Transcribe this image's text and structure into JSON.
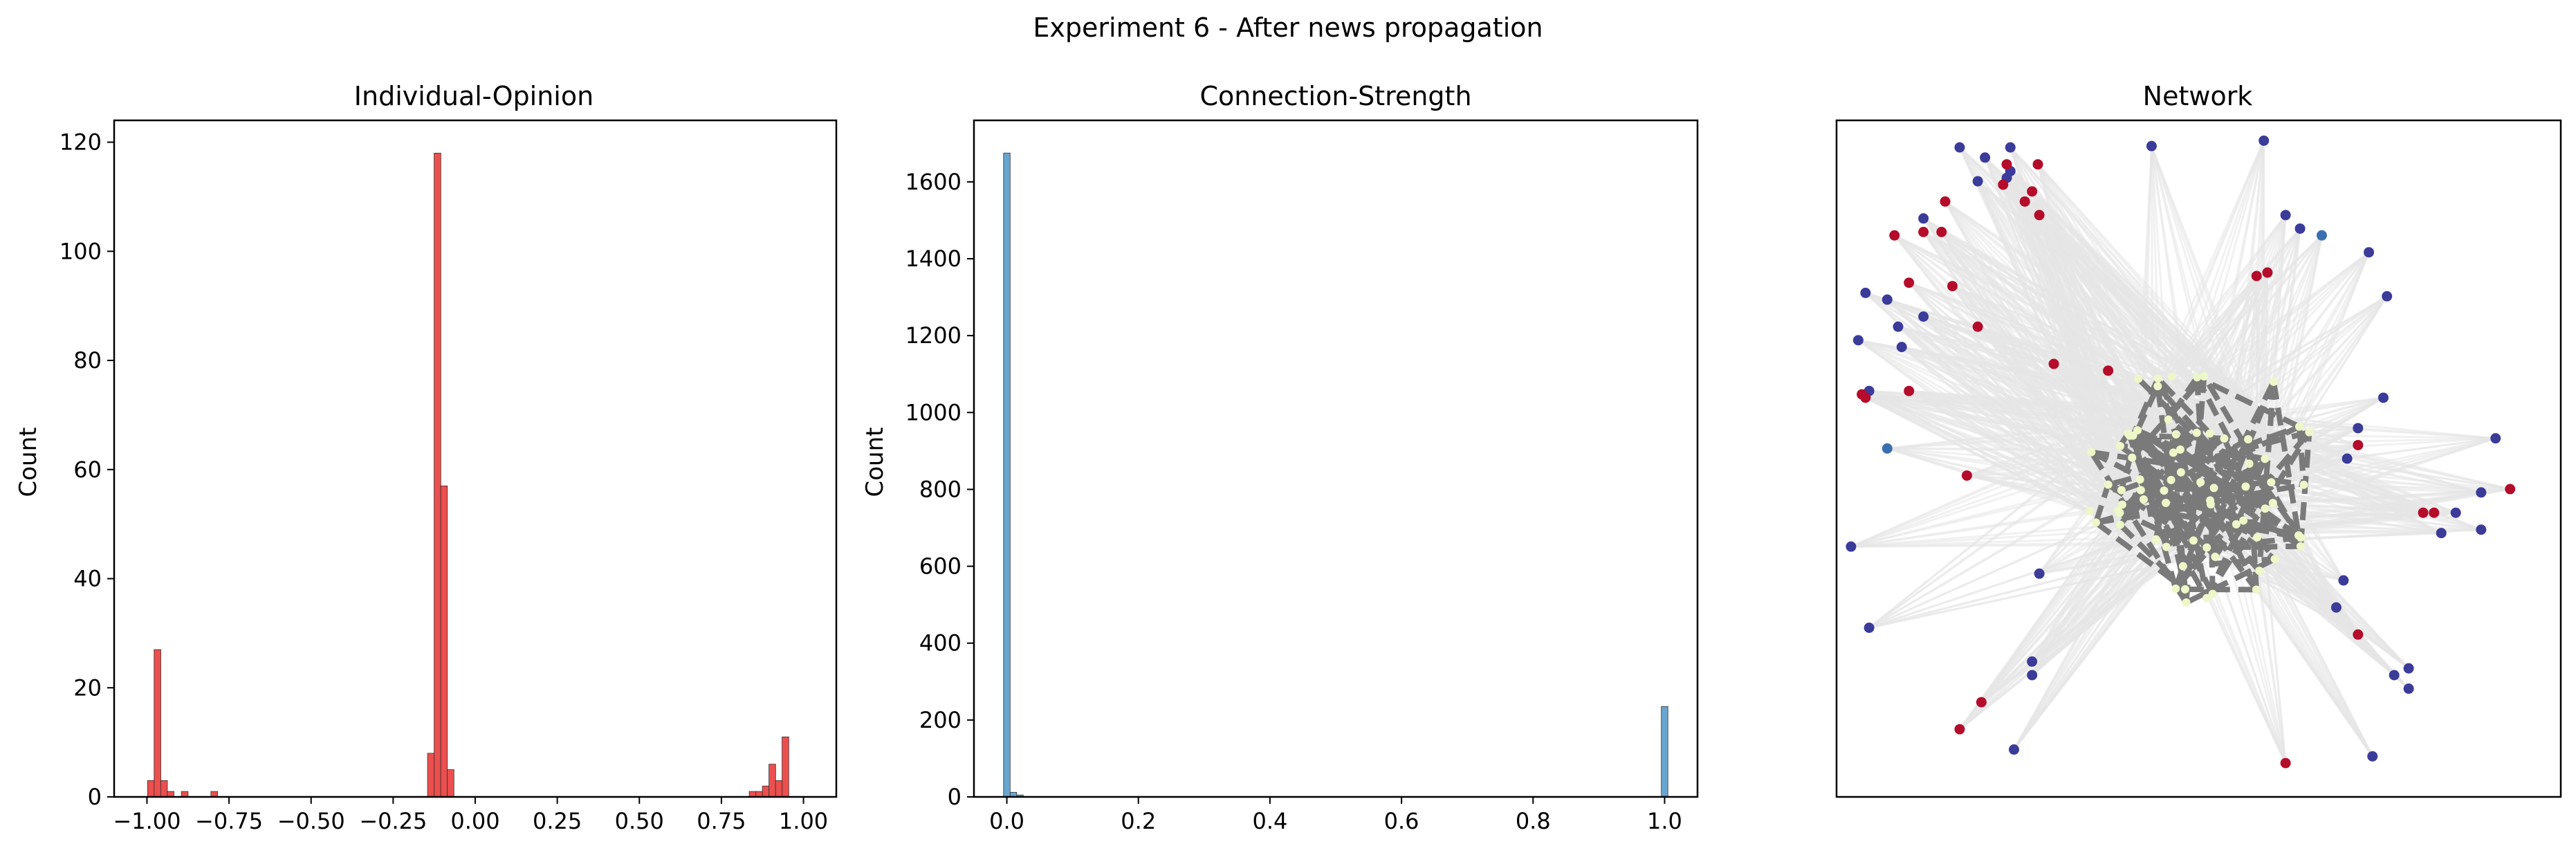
{
  "figure": {
    "suptitle": "Experiment 6 - After news propagation"
  },
  "chart_data": [
    {
      "type": "bar",
      "title": "Individual-Opinion",
      "xlabel": "",
      "ylabel": "Count",
      "xlim": [
        -1.1,
        1.1
      ],
      "ylim": [
        0,
        124
      ],
      "xticks": [
        "−1.00",
        "−0.75",
        "−0.50",
        "−0.25",
        "0.00",
        "0.25",
        "0.50",
        "0.75",
        "1.00"
      ],
      "xtick_values": [
        -1.0,
        -0.75,
        -0.5,
        -0.25,
        0.0,
        0.25,
        0.5,
        0.75,
        1.0
      ],
      "yticks": [
        "0",
        "20",
        "40",
        "60",
        "80",
        "100",
        "120"
      ],
      "ytick_values": [
        0,
        20,
        40,
        60,
        80,
        100,
        120
      ],
      "bar_color": "#e8302f",
      "bin_width": 0.0205,
      "bins": [
        {
          "x": -0.988,
          "count": 3
        },
        {
          "x": -0.968,
          "count": 27
        },
        {
          "x": -0.948,
          "count": 3
        },
        {
          "x": -0.928,
          "count": 1
        },
        {
          "x": -0.885,
          "count": 1
        },
        {
          "x": -0.795,
          "count": 1
        },
        {
          "x": -0.135,
          "count": 8
        },
        {
          "x": -0.115,
          "count": 118
        },
        {
          "x": -0.095,
          "count": 57
        },
        {
          "x": -0.075,
          "count": 5
        },
        {
          "x": 0.845,
          "count": 1
        },
        {
          "x": 0.865,
          "count": 1
        },
        {
          "x": 0.885,
          "count": 2
        },
        {
          "x": 0.905,
          "count": 6
        },
        {
          "x": 0.925,
          "count": 3
        },
        {
          "x": 0.945,
          "count": 11
        }
      ]
    },
    {
      "type": "bar",
      "title": "Connection-Strength",
      "xlabel": "",
      "ylabel": "Count",
      "xlim": [
        -0.05,
        1.05
      ],
      "ylim": [
        0,
        1760
      ],
      "xticks": [
        "0.0",
        "0.2",
        "0.4",
        "0.6",
        "0.8",
        "1.0"
      ],
      "xtick_values": [
        0.0,
        0.2,
        0.4,
        0.6,
        0.8,
        1.0
      ],
      "yticks": [
        "0",
        "200",
        "400",
        "600",
        "800",
        "1000",
        "1200",
        "1400",
        "1600"
      ],
      "ytick_values": [
        0,
        200,
        400,
        600,
        800,
        1000,
        1200,
        1400,
        1600
      ],
      "bar_color": "#4d96c8",
      "bin_width": 0.01,
      "bins": [
        {
          "x": 0.0,
          "count": 1675
        },
        {
          "x": 0.01,
          "count": 12
        },
        {
          "x": 0.02,
          "count": 5
        },
        {
          "x": 1.0,
          "count": 235
        }
      ]
    },
    {
      "type": "network",
      "title": "Network",
      "colors": {
        "negative_node": "#b40c2a",
        "neutral_positive_node": "#3b3b9a",
        "mid_blue_node": "#3a6fb0",
        "core_node": "#eef7c8",
        "strong_edge": "#7a7a7a",
        "weak_edge": "#e6e6e6"
      },
      "nodes": [
        {
          "x": 0.17,
          "y": 0.96,
          "g": "b"
        },
        {
          "x": 0.205,
          "y": 0.945,
          "g": "b"
        },
        {
          "x": 0.24,
          "y": 0.925,
          "g": "b"
        },
        {
          "x": 0.235,
          "y": 0.915,
          "g": "b"
        },
        {
          "x": 0.278,
          "y": 0.935,
          "g": "r"
        },
        {
          "x": 0.23,
          "y": 0.905,
          "g": "r"
        },
        {
          "x": 0.235,
          "y": 0.935,
          "g": "r"
        },
        {
          "x": 0.435,
          "y": 0.962,
          "g": "b"
        },
        {
          "x": 0.195,
          "y": 0.91,
          "g": "b"
        },
        {
          "x": 0.15,
          "y": 0.88,
          "g": "r"
        },
        {
          "x": 0.12,
          "y": 0.855,
          "g": "b"
        },
        {
          "x": 0.145,
          "y": 0.835,
          "g": "r"
        },
        {
          "x": 0.12,
          "y": 0.835,
          "g": "r"
        },
        {
          "x": 0.08,
          "y": 0.83,
          "g": "r"
        },
        {
          "x": 0.04,
          "y": 0.745,
          "g": "b"
        },
        {
          "x": 0.16,
          "y": 0.755,
          "g": "r"
        },
        {
          "x": 0.1,
          "y": 0.76,
          "g": "r"
        },
        {
          "x": 0.07,
          "y": 0.735,
          "g": "b"
        },
        {
          "x": 0.03,
          "y": 0.675,
          "g": "b"
        },
        {
          "x": 0.085,
          "y": 0.695,
          "g": "b"
        },
        {
          "x": 0.12,
          "y": 0.71,
          "g": "b"
        },
        {
          "x": 0.195,
          "y": 0.695,
          "g": "r"
        },
        {
          "x": 0.09,
          "y": 0.665,
          "g": "b"
        },
        {
          "x": 0.1,
          "y": 0.6,
          "g": "r"
        },
        {
          "x": 0.045,
          "y": 0.6,
          "g": "b"
        },
        {
          "x": 0.04,
          "y": 0.59,
          "g": "r"
        },
        {
          "x": 0.035,
          "y": 0.595,
          "g": "r"
        },
        {
          "x": 0.18,
          "y": 0.475,
          "g": "r"
        },
        {
          "x": 0.07,
          "y": 0.515,
          "g": "m"
        },
        {
          "x": 0.02,
          "y": 0.37,
          "g": "b"
        },
        {
          "x": 0.045,
          "y": 0.25,
          "g": "b"
        },
        {
          "x": 0.27,
          "y": 0.895,
          "g": "r"
        },
        {
          "x": 0.26,
          "y": 0.88,
          "g": "r"
        },
        {
          "x": 0.28,
          "y": 0.86,
          "g": "r"
        },
        {
          "x": 0.62,
          "y": 0.86,
          "g": "b"
        },
        {
          "x": 0.64,
          "y": 0.84,
          "g": "b"
        },
        {
          "x": 0.67,
          "y": 0.83,
          "g": "m"
        },
        {
          "x": 0.735,
          "y": 0.805,
          "g": "b"
        },
        {
          "x": 0.58,
          "y": 0.77,
          "g": "r"
        },
        {
          "x": 0.595,
          "y": 0.775,
          "g": "r"
        },
        {
          "x": 0.76,
          "y": 0.74,
          "g": "b"
        },
        {
          "x": 0.375,
          "y": 0.63,
          "g": "r"
        },
        {
          "x": 0.755,
          "y": 0.59,
          "g": "b"
        },
        {
          "x": 0.72,
          "y": 0.545,
          "g": "b"
        },
        {
          "x": 0.705,
          "y": 0.5,
          "g": "b"
        },
        {
          "x": 0.91,
          "y": 0.53,
          "g": "b"
        },
        {
          "x": 0.89,
          "y": 0.45,
          "g": "b"
        },
        {
          "x": 0.93,
          "y": 0.455,
          "g": "r"
        },
        {
          "x": 0.81,
          "y": 0.42,
          "g": "r"
        },
        {
          "x": 0.825,
          "y": 0.42,
          "g": "r"
        },
        {
          "x": 0.855,
          "y": 0.42,
          "g": "b"
        },
        {
          "x": 0.835,
          "y": 0.39,
          "g": "b"
        },
        {
          "x": 0.89,
          "y": 0.395,
          "g": "b"
        },
        {
          "x": 0.72,
          "y": 0.52,
          "g": "r"
        },
        {
          "x": 0.28,
          "y": 0.33,
          "g": "b"
        },
        {
          "x": 0.7,
          "y": 0.32,
          "g": "b"
        },
        {
          "x": 0.69,
          "y": 0.28,
          "g": "b"
        },
        {
          "x": 0.72,
          "y": 0.24,
          "g": "r"
        },
        {
          "x": 0.27,
          "y": 0.2,
          "g": "b"
        },
        {
          "x": 0.27,
          "y": 0.18,
          "g": "b"
        },
        {
          "x": 0.2,
          "y": 0.14,
          "g": "r"
        },
        {
          "x": 0.17,
          "y": 0.1,
          "g": "r"
        },
        {
          "x": 0.245,
          "y": 0.07,
          "g": "b"
        },
        {
          "x": 0.62,
          "y": 0.05,
          "g": "r"
        },
        {
          "x": 0.74,
          "y": 0.06,
          "g": "b"
        },
        {
          "x": 0.77,
          "y": 0.18,
          "g": "b"
        },
        {
          "x": 0.79,
          "y": 0.16,
          "g": "b"
        },
        {
          "x": 0.79,
          "y": 0.19,
          "g": "b"
        },
        {
          "x": 0.59,
          "y": 0.97,
          "g": "b"
        },
        {
          "x": 0.24,
          "y": 0.96,
          "g": "b"
        },
        {
          "x": 0.3,
          "y": 0.64,
          "g": "r"
        }
      ]
    }
  ]
}
